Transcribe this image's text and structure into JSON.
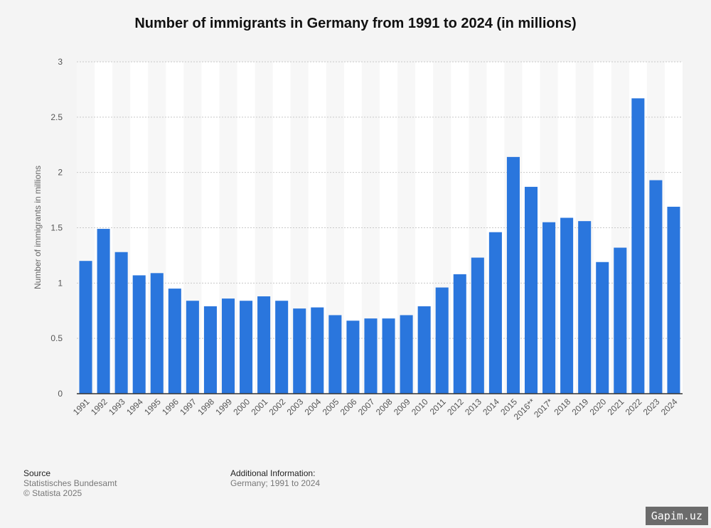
{
  "chart_data": {
    "type": "bar",
    "title": "Number of immigrants in Germany from 1991 to 2024 (in millions)",
    "xlabel": "",
    "ylabel": "Number of immigrants in millions",
    "ylim": [
      0,
      3
    ],
    "yticks": [
      "0",
      "0.5",
      "1",
      "1.5",
      "2",
      "2.5",
      "3"
    ],
    "grid": true,
    "categories": [
      "1991",
      "1992",
      "1993",
      "1994",
      "1995",
      "1996",
      "1997",
      "1998",
      "1999",
      "2000",
      "2001",
      "2002",
      "2003",
      "2004",
      "2005",
      "2006",
      "2007",
      "2008",
      "2009",
      "2010",
      "2011",
      "2012",
      "2013",
      "2014",
      "2015",
      "2016**",
      "2017*",
      "2018",
      "2019",
      "2020",
      "2021",
      "2022",
      "2023",
      "2024"
    ],
    "values": [
      1.2,
      1.49,
      1.28,
      1.07,
      1.09,
      0.95,
      0.84,
      0.79,
      0.86,
      0.84,
      0.88,
      0.84,
      0.77,
      0.78,
      0.71,
      0.66,
      0.68,
      0.68,
      0.71,
      0.79,
      0.96,
      1.08,
      1.23,
      1.46,
      2.14,
      1.87,
      1.55,
      1.59,
      1.56,
      1.19,
      1.32,
      2.67,
      1.93,
      1.69
    ],
    "bar_color": "#2a76dd"
  },
  "footer": {
    "source_label": "Source",
    "source_value": "Statistisches Bundesamt",
    "copyright": "© Statista 2025",
    "info_label": "Additional Information:",
    "info_value": "Germany; 1991 to 2024"
  },
  "watermark": "Gapim.uz"
}
